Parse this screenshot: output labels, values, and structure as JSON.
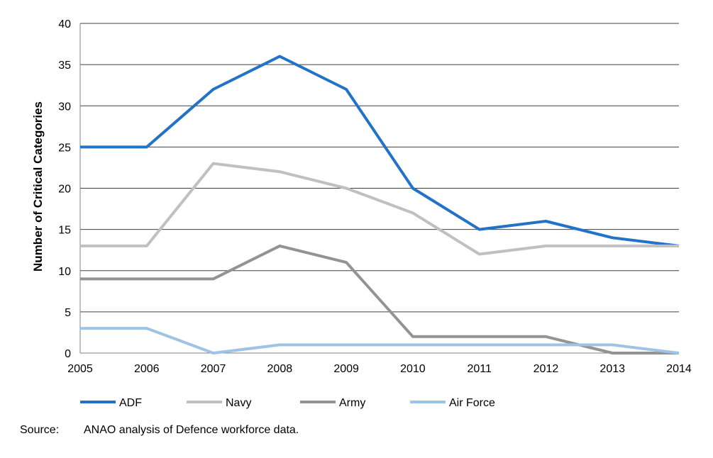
{
  "chart_data": {
    "type": "line",
    "title": "",
    "xlabel": "",
    "ylabel": "Number of Critical Categories",
    "x": [
      2005,
      2006,
      2007,
      2008,
      2009,
      2010,
      2011,
      2012,
      2013,
      2014
    ],
    "x_tick_labels": [
      "2005",
      "2006",
      "2007",
      "2008",
      "2009",
      "2010",
      "2011",
      "2012",
      "2013",
      "2014"
    ],
    "ylim": [
      0,
      40
    ],
    "y_ticks": [
      0,
      5,
      10,
      15,
      20,
      25,
      30,
      35,
      40
    ],
    "y_tick_labels": [
      "0",
      "5",
      "10",
      "15",
      "20",
      "25",
      "30",
      "35",
      "40"
    ],
    "grid": "horizontal",
    "legend_position": "bottom",
    "series": [
      {
        "name": "ADF",
        "color": "#2273c8",
        "values": [
          25,
          25,
          32,
          36,
          32,
          20,
          15,
          16,
          14,
          13
        ]
      },
      {
        "name": "Navy",
        "color": "#c0c0c0",
        "values": [
          13,
          13,
          23,
          22,
          20,
          17,
          12,
          13,
          13,
          13
        ]
      },
      {
        "name": "Army",
        "color": "#939393",
        "values": [
          9,
          9,
          9,
          13,
          11,
          2,
          2,
          2,
          0,
          0
        ]
      },
      {
        "name": "Air Force",
        "color": "#9fc3e5",
        "values": [
          3,
          3,
          0,
          1,
          1,
          1,
          1,
          1,
          1,
          0
        ]
      }
    ]
  },
  "source": {
    "label": "Source:",
    "text": "ANAO analysis of Defence workforce data."
  }
}
